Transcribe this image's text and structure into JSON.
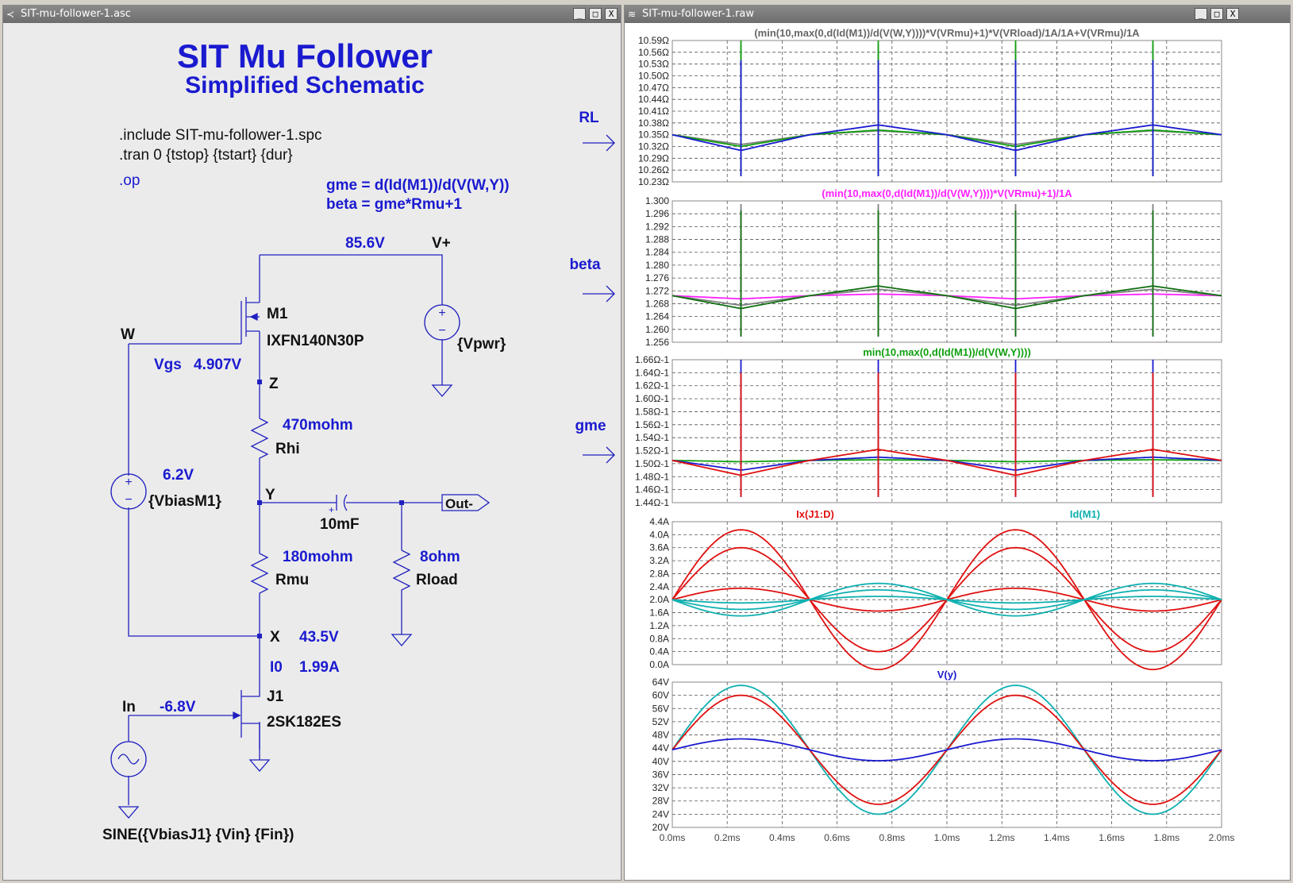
{
  "left_window": {
    "title": "SIT-mu-follower-1.asc",
    "buttons": [
      "_",
      "□",
      "X"
    ]
  },
  "right_window": {
    "title": "SIT-mu-follower-1.raw",
    "buttons": [
      "_",
      "□",
      "X"
    ]
  },
  "schematic": {
    "title": "SIT Mu Follower",
    "subtitle": "Simplified Schematic",
    "directives": [
      ".include SIT-mu-follower-1.spc",
      ".tran 0 {tstop} {tstart} {dur}"
    ],
    "op_directive": ".op",
    "equations": [
      "gme = d(Id(M1))/d(V(W,Y))",
      "beta = gme*Rmu+1"
    ],
    "labels": {
      "vplus_voltage": "85.6V",
      "vplus": "V+",
      "m1": "M1",
      "m1_part": "IXFN140N30P",
      "vpwr": "{Vpwr}",
      "w": "W",
      "vgs_label": "Vgs",
      "vgs_value": "4.907V",
      "z": "Z",
      "rhi_value": "470mohm",
      "rhi": "Rhi",
      "bias_voltage": "6.2V",
      "bias_source": "{VbiasM1}",
      "y": "Y",
      "cap_value": "10mF",
      "out": "Out-",
      "rmu_value": "180mohm",
      "rmu": "Rmu",
      "rload_value": "8ohm",
      "rload": "Rload",
      "x": "X",
      "x_voltage": "43.5V",
      "i0_label": "I0",
      "i0_value": "1.99A",
      "j1": "J1",
      "j1_part": "2SK182ES",
      "in": "In",
      "in_voltage": "-6.8V",
      "sine": "SINE({VbiasJ1} {Vin} {Fin})"
    }
  },
  "arrows": [
    "RL",
    "beta",
    "gme"
  ],
  "colors": {
    "blue": "#1a1ad0",
    "red": "#e01010",
    "green": "#10a010",
    "cyan": "#10b0b0",
    "magenta": "#ff20ff",
    "gray": "#808080",
    "darkgreen": "#107010"
  },
  "chart_data": [
    {
      "type": "line",
      "title": "(min(10,max(0,d(Id(M1))/d(V(W,Y))))*V(VRmu)+1)*V(VRload)/1A/1A+V(VRmu)/1A",
      "y_ticks": [
        "10.59Ω",
        "10.56Ω",
        "10.53Ω",
        "10.50Ω",
        "10.47Ω",
        "10.44Ω",
        "10.41Ω",
        "10.38Ω",
        "10.35Ω",
        "10.32Ω",
        "10.29Ω",
        "10.26Ω",
        "10.23Ω"
      ],
      "ylim": [
        10.23,
        10.59
      ],
      "x_ticks": [
        "0.0ms",
        "0.2ms",
        "0.4ms",
        "0.6ms",
        "0.8ms",
        "1.0ms",
        "1.2ms",
        "1.4ms",
        "1.6ms",
        "1.8ms",
        "2.0ms"
      ],
      "xlim": [
        0,
        2.0
      ],
      "series": [
        {
          "color": "gray",
          "base": 10.35,
          "dip": 10.325,
          "bump": 10.36,
          "spike": 10.58
        },
        {
          "color": "green",
          "base": 10.35,
          "dip": 10.32,
          "bump": 10.362,
          "spike": 10.59
        },
        {
          "color": "blue",
          "base": 10.35,
          "dip": 10.31,
          "bump": 10.375,
          "spike": 10.54
        }
      ]
    },
    {
      "type": "line",
      "title": "(min(10,max(0,d(Id(M1))/d(V(W,Y))))*V(VRmu)+1)/1A",
      "y_ticks": [
        "1.300",
        "1.296",
        "1.292",
        "1.288",
        "1.284",
        "1.280",
        "1.276",
        "1.272",
        "1.268",
        "1.264",
        "1.260",
        "1.256"
      ],
      "ylim": [
        1.256,
        1.3
      ],
      "x_ticks": [
        "0.0ms",
        "0.2ms",
        "0.4ms",
        "0.6ms",
        "0.8ms",
        "1.0ms",
        "1.2ms",
        "1.4ms",
        "1.6ms",
        "1.8ms",
        "2.0ms"
      ],
      "xlim": [
        0,
        2.0
      ],
      "series": [
        {
          "color": "magenta",
          "base": 1.2705,
          "dip": 1.2695,
          "bump": 1.271,
          "spike": 1.296
        },
        {
          "color": "gray",
          "base": 1.2705,
          "dip": 1.2675,
          "bump": 1.2725,
          "spike": 1.299
        },
        {
          "color": "darkgreen",
          "base": 1.2705,
          "dip": 1.2665,
          "bump": 1.2735,
          "spike": 1.297
        }
      ]
    },
    {
      "type": "line",
      "title": "min(10,max(0,d(Id(M1))/d(V(W,Y))))",
      "y_ticks": [
        "1.66Ω-1",
        "1.64Ω-1",
        "1.62Ω-1",
        "1.60Ω-1",
        "1.58Ω-1",
        "1.56Ω-1",
        "1.54Ω-1",
        "1.52Ω-1",
        "1.50Ω-1",
        "1.48Ω-1",
        "1.46Ω-1",
        "1.44Ω-1"
      ],
      "ylim": [
        1.44,
        1.66
      ],
      "x_ticks": [
        "0.0ms",
        "0.2ms",
        "0.4ms",
        "0.6ms",
        "0.8ms",
        "1.0ms",
        "1.2ms",
        "1.4ms",
        "1.6ms",
        "1.8ms",
        "2.0ms"
      ],
      "xlim": [
        0,
        2.0
      ],
      "series": [
        {
          "color": "green",
          "base": 1.505,
          "dip": 1.503,
          "bump": 1.506,
          "spike": 1.64
        },
        {
          "color": "blue",
          "base": 1.505,
          "dip": 1.49,
          "bump": 1.51,
          "spike": 1.66
        },
        {
          "color": "red",
          "base": 1.505,
          "dip": 1.482,
          "bump": 1.522,
          "spike": 1.64
        }
      ]
    },
    {
      "type": "line",
      "title": "",
      "legend": [
        "Ix(J1:D)",
        "Id(M1)"
      ],
      "y_ticks": [
        "4.4A",
        "4.0A",
        "3.6A",
        "3.2A",
        "2.8A",
        "2.4A",
        "2.0A",
        "1.6A",
        "1.2A",
        "0.8A",
        "0.4A",
        "0.0A"
      ],
      "ylim": [
        0.0,
        4.4
      ],
      "x_ticks": [
        "0.0ms",
        "0.2ms",
        "0.4ms",
        "0.6ms",
        "0.8ms",
        "1.0ms",
        "1.2ms",
        "1.4ms",
        "1.6ms",
        "1.8ms",
        "2.0ms"
      ],
      "xlim": [
        0,
        2.0
      ],
      "series": [
        {
          "color": "red",
          "amp": 2.15,
          "offset": 2.0
        },
        {
          "color": "red",
          "amp": 1.6,
          "offset": 2.0
        },
        {
          "color": "red",
          "amp": 0.35,
          "offset": 2.0
        },
        {
          "color": "cyan",
          "amp": -0.5,
          "offset": 2.0
        },
        {
          "color": "cyan",
          "amp": -0.3,
          "offset": 2.0
        },
        {
          "color": "cyan",
          "amp": -0.1,
          "offset": 2.0
        }
      ]
    },
    {
      "type": "line",
      "title": "V(y)",
      "y_ticks": [
        "64V",
        "60V",
        "56V",
        "52V",
        "48V",
        "44V",
        "40V",
        "36V",
        "32V",
        "28V",
        "24V",
        "20V"
      ],
      "ylim": [
        20,
        64
      ],
      "x_ticks": [
        "0.0ms",
        "0.2ms",
        "0.4ms",
        "0.6ms",
        "0.8ms",
        "1.0ms",
        "1.2ms",
        "1.4ms",
        "1.6ms",
        "1.8ms",
        "2.0ms"
      ],
      "xlim": [
        0,
        2.0
      ],
      "series": [
        {
          "color": "cyan",
          "amp": 19.5,
          "offset": 43.5
        },
        {
          "color": "red",
          "amp": 16.5,
          "offset": 43.5
        },
        {
          "color": "blue",
          "amp": 3.3,
          "offset": 43.5
        }
      ]
    }
  ]
}
